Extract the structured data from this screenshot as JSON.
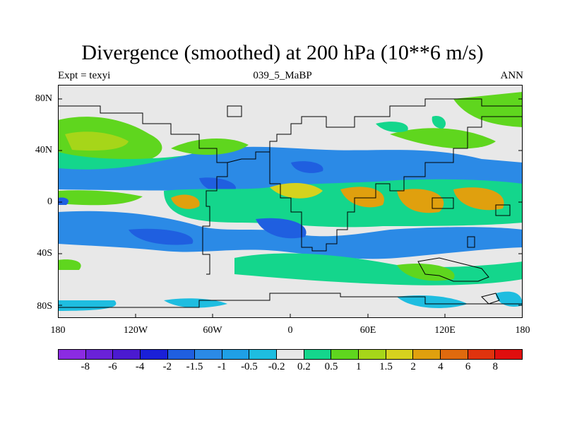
{
  "title": "Divergence (smoothed) at 200 hPa (10**6 m/s)",
  "subtitle_left": "Expt = texyi",
  "subtitle_center": "039_5_MaBP",
  "subtitle_right": "ANN",
  "y_ticks": [
    "80N",
    "40N",
    "0",
    "40S",
    "80S"
  ],
  "x_ticks": [
    "180",
    "120W",
    "60W",
    "0",
    "60E",
    "120E",
    "180"
  ],
  "colorbar": {
    "colors": [
      "#8b2be2",
      "#6a22d8",
      "#4b1ad0",
      "#1a20d8",
      "#1f5fe0",
      "#2b8ae6",
      "#1fa0e6",
      "#1ebde0",
      "#e8e8e8",
      "#14d68c",
      "#5fd61e",
      "#a6d619",
      "#d6d21e",
      "#e0a00e",
      "#e06a0e",
      "#e0330e",
      "#e00e0e"
    ],
    "labels": [
      "-8",
      "-6",
      "-4",
      "-2",
      "-1.5",
      "-1",
      "-0.5",
      "-0.2",
      "0.2",
      "0.5",
      "1",
      "1.5",
      "2",
      "4",
      "6",
      "8"
    ]
  },
  "colors": {
    "neutral": "#e8e8e8",
    "blue": "#2b8ae6",
    "deep_blue": "#1f5fe0",
    "cyan": "#1ebde0",
    "green": "#5fd61e",
    "light_green": "#14d68c",
    "yellowgreen": "#a6d619",
    "orange": "#e0a00e",
    "yellow": "#d6d21e"
  }
}
